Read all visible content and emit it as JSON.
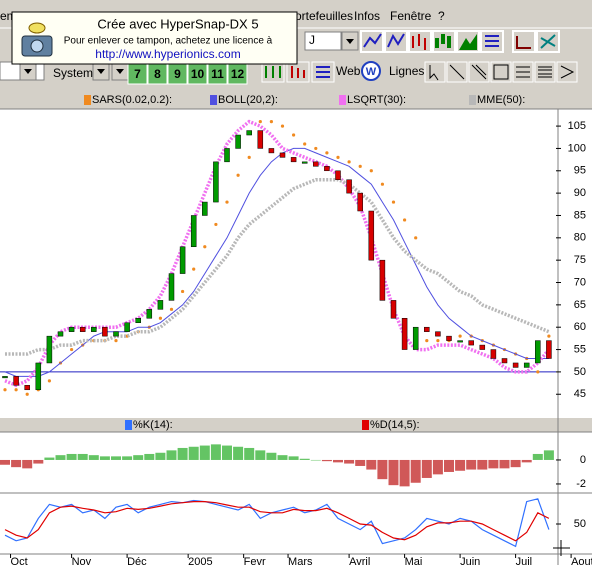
{
  "ui": {
    "menu": [
      "ems",
      "Portefeuilles",
      "Infos",
      "Fenêtre",
      "?"
    ],
    "period": "J",
    "system": "System",
    "web": "Web",
    "lines": "Lignes",
    "numbers": [
      "7",
      "8",
      "9",
      "10",
      "11",
      "12"
    ]
  },
  "watermark": {
    "title": "Crée avec HyperSnap-DX 5",
    "note": "Pour enlever ce tampon, achetez une licence à",
    "url": "http://www.hyperionics.com"
  },
  "chart_data": [
    {
      "type": "candlestick",
      "values": [
        49,
        47,
        46,
        52,
        58,
        59,
        60,
        59,
        60,
        58,
        59,
        61,
        62,
        64,
        66,
        72,
        78,
        85,
        88,
        97,
        100,
        103,
        104,
        100,
        99,
        98,
        97,
        97,
        96,
        95,
        93,
        90,
        86,
        75,
        66,
        62,
        55,
        60,
        59,
        58,
        57,
        57,
        56,
        55,
        53,
        52,
        51,
        52,
        57,
        53
      ],
      "up_color": "#009a00",
      "down_color": "#d80000",
      "reference_line": 50,
      "reference_color": "#2020c0",
      "series": [
        {
          "name": "SARS(0.02,0.2):",
          "color": "#f08a20",
          "style": "dots",
          "values": [
            46,
            46,
            45,
            46,
            48,
            52,
            55,
            56,
            57,
            57,
            57,
            58,
            59,
            60,
            62,
            64,
            68,
            73,
            78,
            83,
            88,
            94,
            98,
            106,
            106,
            105,
            103,
            101,
            100,
            99,
            98,
            97,
            96,
            95,
            92,
            88,
            84,
            80,
            57,
            57,
            57,
            58,
            58,
            57,
            56,
            55,
            54,
            53,
            50,
            58
          ]
        },
        {
          "name": "BOLL(20,2):",
          "color": "#5050e0",
          "style": "line",
          "values": [
            50,
            49,
            49,
            49,
            50,
            52,
            54,
            56,
            58,
            59,
            59,
            59,
            60,
            60,
            61,
            63,
            65,
            68,
            72,
            76,
            80,
            85,
            90,
            94,
            97,
            99,
            100,
            100,
            99,
            98,
            97,
            96,
            94,
            92,
            88,
            84,
            79,
            74,
            69,
            65,
            62,
            60,
            58,
            57,
            56,
            55,
            54,
            53,
            53,
            53
          ]
        },
        {
          "name": "LSQRT(30):",
          "color": "#f070f0",
          "style": "thick",
          "values": [
            48,
            47,
            48,
            51,
            56,
            59,
            60,
            60,
            60,
            60,
            60,
            61,
            62,
            64,
            67,
            72,
            78,
            84,
            90,
            96,
            101,
            104,
            106,
            105,
            103,
            100,
            99,
            98,
            97,
            96,
            94,
            91,
            87,
            80,
            72,
            64,
            58,
            55,
            55,
            56,
            56,
            56,
            55,
            54,
            53,
            51,
            50,
            50,
            52,
            55
          ]
        },
        {
          "name": "MME(50):",
          "color": "#b8b8b8",
          "style": "thick",
          "values": [
            54,
            54,
            54,
            55,
            55,
            56,
            56,
            57,
            57,
            57,
            58,
            58,
            59,
            59,
            60,
            62,
            64,
            67,
            70,
            73,
            76,
            80,
            83,
            85,
            87,
            89,
            91,
            92,
            93,
            93,
            93,
            92,
            90,
            88,
            84,
            80,
            77,
            75,
            73,
            72,
            70,
            68,
            67,
            65,
            64,
            63,
            62,
            61,
            60,
            59
          ]
        }
      ],
      "ylim": [
        37,
        108.6
      ],
      "yticks": [
        45,
        50,
        55,
        60,
        65,
        70,
        75,
        80,
        85,
        90,
        95,
        100,
        105
      ]
    },
    {
      "type": "bar",
      "values": [
        -0.4,
        -0.6,
        -0.7,
        -0.3,
        0.2,
        0.4,
        0.5,
        0.5,
        0.4,
        0.3,
        0.3,
        0.3,
        0.4,
        0.5,
        0.6,
        0.8,
        1.0,
        1.1,
        1.2,
        1.3,
        1.2,
        1.1,
        1.0,
        0.8,
        0.6,
        0.4,
        0.3,
        0.1,
        0.0,
        -0.1,
        -0.2,
        -0.3,
        -0.5,
        -0.8,
        -1.6,
        -2.1,
        -2.2,
        -1.9,
        -1.5,
        -1.2,
        -1.0,
        -0.9,
        -0.8,
        -0.8,
        -0.7,
        -0.7,
        -0.6,
        -0.2,
        0.5,
        0.8
      ],
      "up_color": "#30b030",
      "down_color": "#c02020",
      "ylim": [
        -2.67,
        2.08
      ],
      "yticks": [
        -2,
        0
      ]
    },
    {
      "type": "line",
      "series": [
        {
          "name": "%K(14):",
          "color": "#3070ff",
          "values": [
            30,
            20,
            25,
            60,
            85,
            80,
            85,
            70,
            75,
            60,
            80,
            85,
            70,
            80,
            85,
            90,
            88,
            92,
            90,
            85,
            80,
            75,
            85,
            60,
            70,
            75,
            80,
            70,
            75,
            85,
            60,
            50,
            40,
            55,
            15,
            20,
            25,
            40,
            60,
            55,
            50,
            60,
            55,
            40,
            30,
            20,
            10,
            90,
            95,
            40
          ]
        },
        {
          "name": "%D(14,5):",
          "color": "#e00000",
          "values": [
            40,
            30,
            25,
            40,
            70,
            80,
            82,
            78,
            75,
            70,
            72,
            78,
            76,
            78,
            82,
            86,
            88,
            90,
            90,
            88,
            84,
            80,
            80,
            72,
            70,
            70,
            76,
            74,
            74,
            78,
            70,
            60,
            50,
            48,
            35,
            25,
            22,
            30,
            45,
            52,
            52,
            55,
            55,
            50,
            40,
            30,
            20,
            35,
            70,
            60
          ]
        }
      ],
      "ylim": [
        0,
        100
      ],
      "yticks": [
        50
      ],
      "xlim": [
        0,
        49
      ],
      "xticks": [
        {
          "value": 0.5,
          "label": "Oct"
        },
        {
          "value": 6,
          "label": "Nov"
        },
        {
          "value": 11,
          "label": "Déc"
        },
        {
          "value": 16.5,
          "label": "2005"
        },
        {
          "value": 21.5,
          "label": "Fevr"
        },
        {
          "value": 25.5,
          "label": "Mars"
        },
        {
          "value": 31,
          "label": "Avril"
        },
        {
          "value": 36,
          "label": "Mai"
        },
        {
          "value": 41,
          "label": "Juin"
        },
        {
          "value": 46,
          "label": "Juil"
        },
        {
          "value": 51,
          "label": "Aout"
        }
      ]
    }
  ]
}
